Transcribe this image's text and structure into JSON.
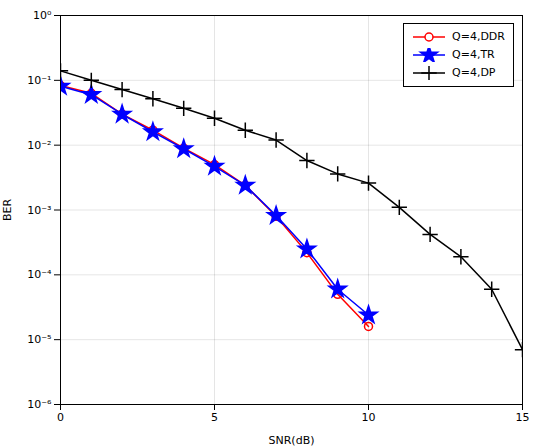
{
  "chart_data": {
    "type": "line",
    "xlabel": "SNR(dB)",
    "ylabel": "BER",
    "x": [
      0,
      1,
      2,
      3,
      4,
      5,
      6,
      7,
      8,
      9,
      10,
      11,
      12,
      13,
      14,
      15
    ],
    "series": [
      {
        "name": "Q=4,DDR",
        "color": "#FF0000",
        "marker": "circle",
        "values": [
          0.083,
          0.063,
          0.03,
          0.017,
          0.009,
          0.005,
          0.0024,
          0.0008,
          0.00022,
          5e-05,
          1.6e-05,
          null,
          null,
          null,
          null,
          null
        ]
      },
      {
        "name": "Q=4,TR",
        "color": "#0000FF",
        "marker": "star",
        "values": [
          0.081,
          0.06,
          0.03,
          0.016,
          0.0088,
          0.0047,
          0.0024,
          0.00082,
          0.00025,
          6e-05,
          2.4e-05,
          null,
          null,
          null,
          null,
          null
        ]
      },
      {
        "name": "Q=4,DP",
        "color": "#000000",
        "marker": "plus",
        "values": [
          0.14,
          0.1,
          0.072,
          0.052,
          0.037,
          0.026,
          0.017,
          0.012,
          0.0058,
          0.0036,
          0.0026,
          0.0011,
          0.00042,
          0.00019,
          6e-05,
          7e-06
        ]
      }
    ],
    "xlim": [
      0,
      15
    ],
    "ylim": [
      1e-06,
      1.0
    ],
    "xticks": [
      0,
      5,
      10,
      15
    ],
    "yticks": [
      {
        "value": 1e-06,
        "label": "10⁻⁶"
      },
      {
        "value": 1e-05,
        "label": "10⁻⁵"
      },
      {
        "value": 0.0001,
        "label": "10⁻⁴"
      },
      {
        "value": 0.001,
        "label": "10⁻³"
      },
      {
        "value": 0.01,
        "label": "10⁻²"
      },
      {
        "value": 0.1,
        "label": "10⁻¹"
      },
      {
        "value": 1,
        "label": "10⁰"
      }
    ],
    "log": "y",
    "grid": true,
    "legend": "upper right"
  }
}
